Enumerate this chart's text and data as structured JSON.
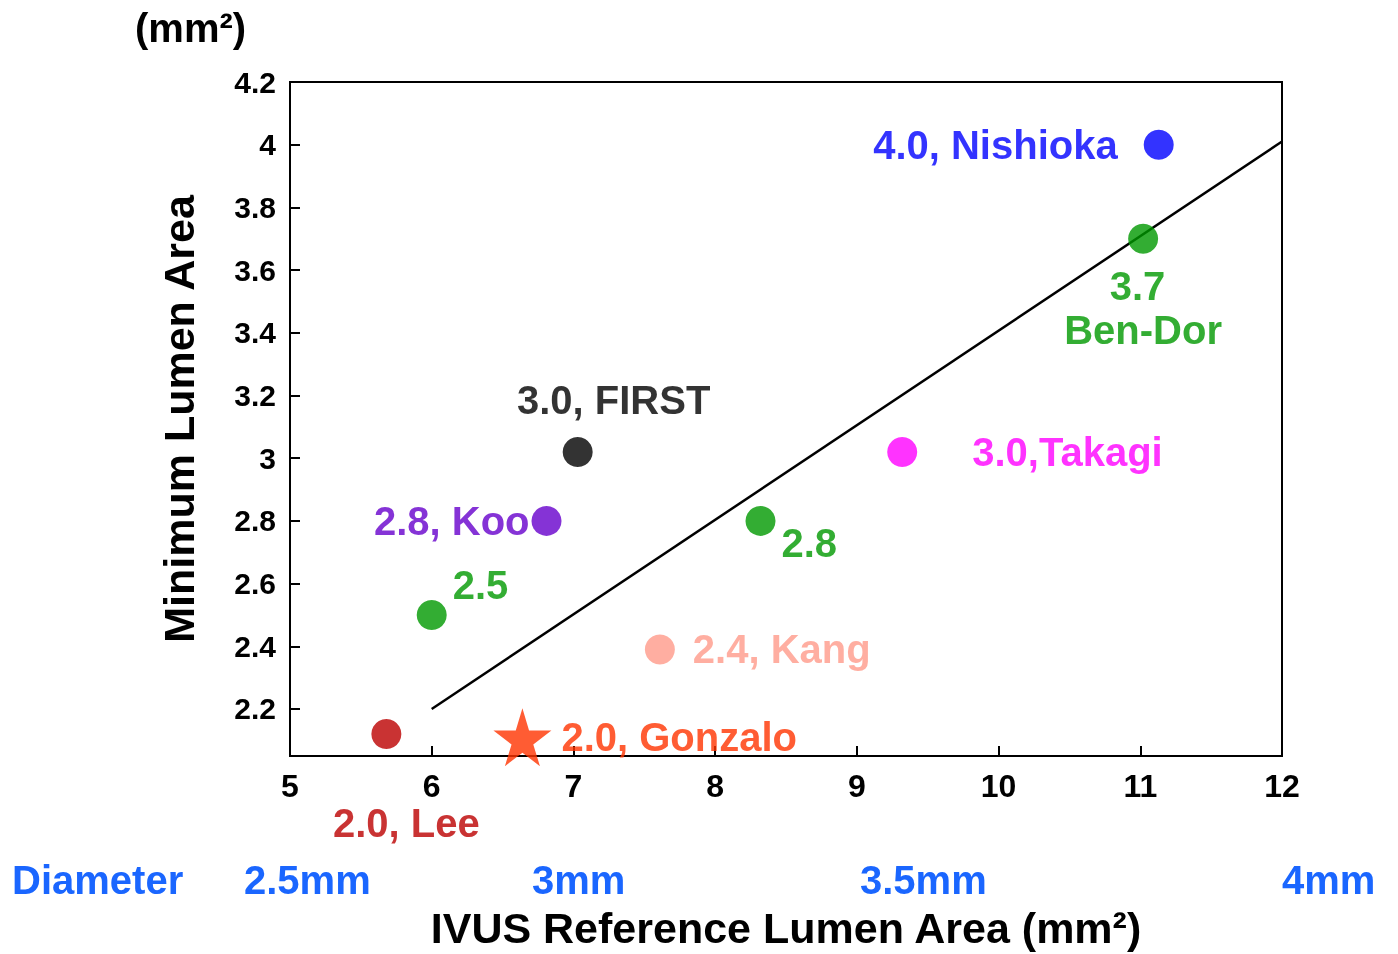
{
  "chart_data": {
    "type": "scatter",
    "xlabel": "IVUS Reference Lumen Area (mm²)",
    "ylabel": "Minimum Lumen Area",
    "xlim": [
      5,
      12
    ],
    "xticks": [
      5,
      6,
      7,
      8,
      9,
      10,
      11,
      12
    ],
    "ylim": [
      2.05,
      4.2
    ],
    "yticks": [
      2.2,
      2.4,
      2.6,
      2.8,
      3,
      3.2,
      3.4,
      3.6,
      3.8,
      4,
      4.2
    ],
    "grid": false,
    "legend": false,
    "marker": "circle",
    "annotations": [
      "(mm²)",
      "Diameter",
      "2.5mm",
      "3mm",
      "3.5mm",
      "4mm"
    ],
    "series": [
      {
        "name": "4.0, Nishioka",
        "color": "#0000ff",
        "x": [
          11.13
        ],
        "values": [
          4.0
        ]
      },
      {
        "name": "3.7 Ben-Dor",
        "color": "#009900",
        "x": [
          11.02
        ],
        "values": [
          3.7
        ]
      },
      {
        "name": "3.0, FIRST",
        "color": "#000000",
        "x": [
          7.03
        ],
        "values": [
          3.02
        ]
      },
      {
        "name": "3.0,Takagi",
        "color": "#ff00ff",
        "x": [
          9.32
        ],
        "values": [
          3.02
        ]
      },
      {
        "name": "2.8, Koo",
        "color": "#6600cc",
        "x": [
          6.81
        ],
        "values": [
          2.8
        ]
      },
      {
        "name": "2.8",
        "color": "#009900",
        "x": [
          8.32
        ],
        "values": [
          2.8
        ]
      },
      {
        "name": "2.5",
        "color": "#009900",
        "x": [
          6.0
        ],
        "values": [
          2.5
        ]
      },
      {
        "name": "2.4, Kang",
        "color": "#ff9a8a",
        "x": [
          7.61
        ],
        "values": [
          2.39
        ]
      },
      {
        "name": "2.0, Lee",
        "color": "#bb0000",
        "x": [
          5.68
        ],
        "values": [
          2.12
        ]
      },
      {
        "name": "2.0, Gonzalo",
        "color": "#ff3300",
        "marker": "star",
        "x": [
          6.64
        ],
        "values": [
          2.11
        ]
      },
      {
        "type": "line",
        "marker": "none",
        "color": "#000000",
        "x": [
          6,
          12
        ],
        "values": [
          2.2,
          4.01
        ]
      }
    ]
  }
}
